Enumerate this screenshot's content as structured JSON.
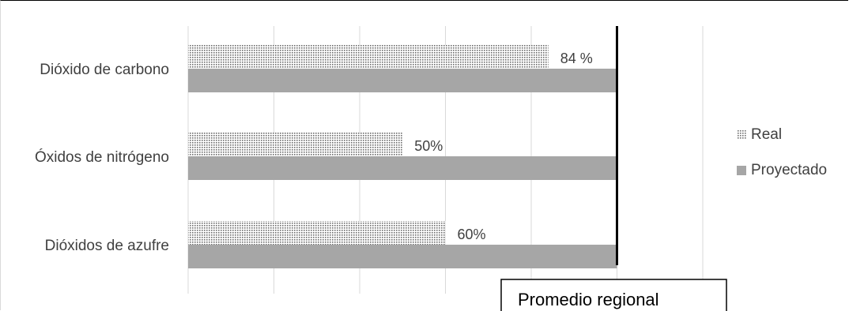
{
  "chart_data": {
    "type": "bar",
    "orientation": "horizontal",
    "categories": [
      "Dióxido de carbono",
      "Óxidos de nitrógeno",
      "Dióxidos de azufre"
    ],
    "series": [
      {
        "name": "Real",
        "values": [
          84,
          50,
          60
        ],
        "labels": [
          "84 %",
          "50%",
          "60%"
        ],
        "pattern": "dotted"
      },
      {
        "name": "Proyectado",
        "values": [
          100,
          100,
          100
        ],
        "color": "#a6a6a6"
      }
    ],
    "reference_line": {
      "value": 100,
      "label": "Promedio regional"
    },
    "xlim": [
      0,
      120
    ],
    "grid": true,
    "legend_position": "right"
  },
  "colors": {
    "projected": "#a6a6a6",
    "grid": "#d9d9d9",
    "text": "#404040",
    "reference": "#000000"
  }
}
